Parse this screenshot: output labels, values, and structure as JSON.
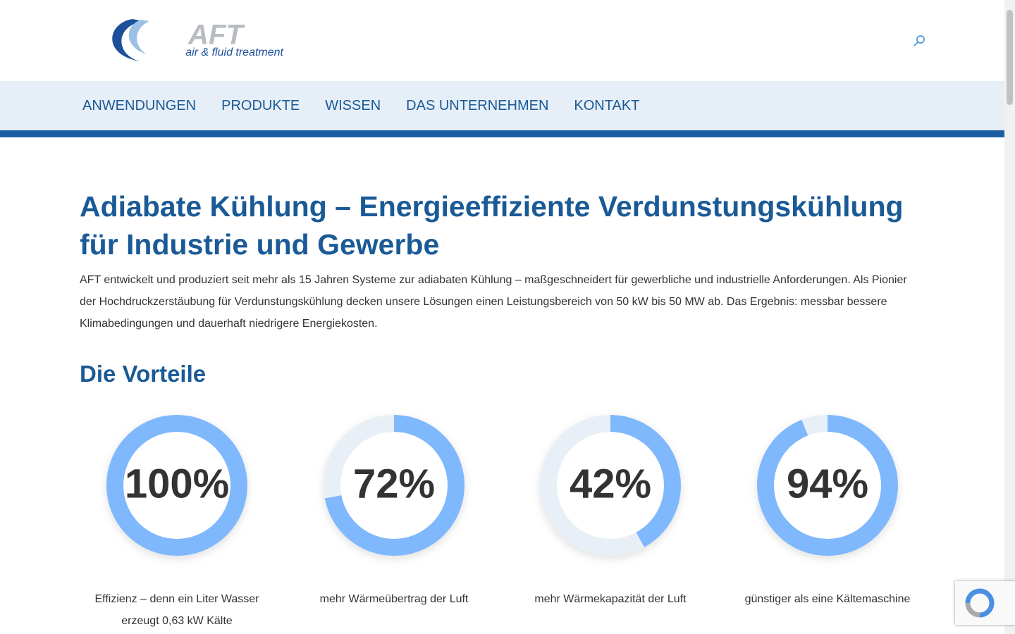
{
  "header": {
    "logo": {
      "mark": "AFT",
      "tagline": "air & fluid treatment"
    }
  },
  "nav": [
    "ANWENDUNGEN",
    "PRODUKTE",
    "WISSEN",
    "DAS UNTERNEHMEN",
    "KONTAKT"
  ],
  "content": {
    "title": "Adiabate Kühlung – Energieeffiziente Verdunstungskühlung für Industrie und Gewerbe",
    "intro": "AFT entwickelt und produziert seit mehr als 15 Jahren Systeme zur adiabaten Kühlung – maßgeschneidert für gewerbliche und industrielle Anforderungen. Als Pionier der Hochdruckzerstäubung für Verdunstungskühlung decken unsere Lösungen einen Leistungsbereich von 50 kW bis 50 MW ab. Das Ergebnis: messbar bessere Klimabedingungen und dauerhaft niedrigere Energiekosten.",
    "section_title": "Die Vorteile",
    "stats": [
      {
        "value": 100,
        "value_label": "100%",
        "caption": "Effizienz – denn ein Liter Wasser erzeugt 0,63 kW Kälte"
      },
      {
        "value": 72,
        "value_label": "72%",
        "caption": "mehr Wärmeübertrag der Luft"
      },
      {
        "value": 42,
        "value_label": "42%",
        "caption": "mehr Wärmekapazität der Luft"
      },
      {
        "value": 94,
        "value_label": "94%",
        "caption": "günstiger als eine Kältemaschine"
      }
    ]
  }
}
